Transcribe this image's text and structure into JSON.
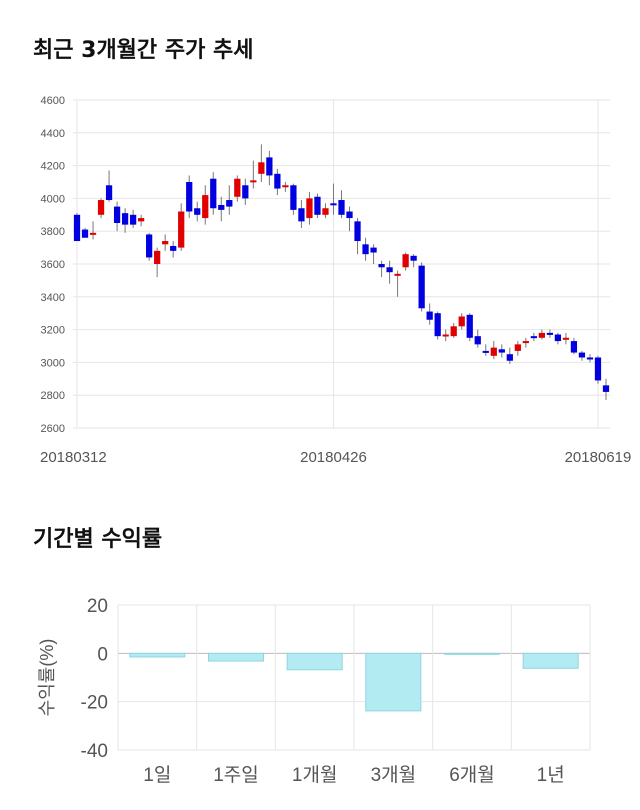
{
  "sections": {
    "price_title": "최근 3개월간 주가 추세",
    "returns_title": "기간별 수익률"
  },
  "colors": {
    "up": "#e00000",
    "down": "#0000e0",
    "bar_fill": "#b2ebf2",
    "bar_stroke": "#8fd6e0",
    "grid": "#e6e6e6"
  },
  "chart_data": [
    {
      "type": "candlestick",
      "title": "최근 3개월간 주가 추세",
      "ylim": [
        2600,
        4600
      ],
      "yticks": [
        2600,
        2800,
        3000,
        3200,
        3400,
        3600,
        3800,
        4000,
        4200,
        4400,
        4600
      ],
      "xtick_labels": [
        {
          "index": 0,
          "label": "20180312"
        },
        {
          "index": 32,
          "label": "20180426"
        },
        {
          "index": 65,
          "label": "20180619"
        }
      ],
      "candles": [
        [
          3900,
          3740,
          3910,
          3760
        ],
        [
          3810,
          3760,
          3820,
          3770
        ],
        [
          3790,
          3790,
          3860,
          3750
        ],
        [
          3900,
          3990,
          4000,
          3880
        ],
        [
          4080,
          3990,
          4170,
          3980
        ],
        [
          3950,
          3850,
          3980,
          3800
        ],
        [
          3910,
          3840,
          3940,
          3790
        ],
        [
          3900,
          3840,
          3930,
          3820
        ],
        [
          3860,
          3880,
          3900,
          3830
        ],
        [
          3780,
          3640,
          3790,
          3620
        ],
        [
          3600,
          3680,
          3700,
          3520
        ],
        [
          3720,
          3740,
          3780,
          3680
        ],
        [
          3710,
          3680,
          3740,
          3640
        ],
        [
          3700,
          3920,
          3970,
          3680
        ],
        [
          4100,
          3920,
          4140,
          3880
        ],
        [
          3940,
          3900,
          3980,
          3860
        ],
        [
          3880,
          4020,
          4080,
          3840
        ],
        [
          4120,
          3940,
          4160,
          3900
        ],
        [
          3960,
          3930,
          4010,
          3860
        ],
        [
          3990,
          3950,
          4080,
          3900
        ],
        [
          4010,
          4120,
          4140,
          3980
        ],
        [
          4080,
          4000,
          4120,
          3960
        ],
        [
          4110,
          4110,
          4230,
          4060
        ],
        [
          4150,
          4220,
          4330,
          4100
        ],
        [
          4250,
          4140,
          4290,
          4080
        ],
        [
          4150,
          4060,
          4180,
          4020
        ],
        [
          4080,
          4080,
          4100,
          4040
        ],
        [
          4080,
          3930,
          4090,
          3900
        ],
        [
          3940,
          3860,
          3990,
          3820
        ],
        [
          3880,
          4000,
          4040,
          3840
        ],
        [
          4010,
          3900,
          4030,
          3880
        ],
        [
          3900,
          3940,
          3970,
          3880
        ],
        [
          3970,
          3960,
          4090,
          3900
        ],
        [
          3990,
          3900,
          4050,
          3880
        ],
        [
          3920,
          3880,
          3950,
          3800
        ],
        [
          3860,
          3740,
          3880,
          3660
        ],
        [
          3720,
          3660,
          3760,
          3620
        ],
        [
          3700,
          3670,
          3720,
          3600
        ],
        [
          3600,
          3580,
          3620,
          3520
        ],
        [
          3580,
          3550,
          3620,
          3480
        ],
        [
          3540,
          3540,
          3560,
          3400
        ],
        [
          3580,
          3660,
          3670,
          3560
        ],
        [
          3650,
          3620,
          3660,
          3580
        ],
        [
          3590,
          3330,
          3610,
          3310
        ],
        [
          3310,
          3260,
          3360,
          3230
        ],
        [
          3300,
          3160,
          3310,
          3140
        ],
        [
          3170,
          3170,
          3200,
          3130
        ],
        [
          3160,
          3220,
          3240,
          3150
        ],
        [
          3220,
          3280,
          3300,
          3200
        ],
        [
          3290,
          3150,
          3300,
          3130
        ],
        [
          3160,
          3110,
          3200,
          3090
        ],
        [
          3070,
          3060,
          3110,
          3040
        ],
        [
          3040,
          3090,
          3130,
          3020
        ],
        [
          3080,
          3060,
          3110,
          3030
        ],
        [
          3050,
          3010,
          3090,
          2990
        ],
        [
          3070,
          3110,
          3130,
          3040
        ],
        [
          3120,
          3130,
          3150,
          3090
        ],
        [
          3160,
          3150,
          3180,
          3130
        ],
        [
          3150,
          3180,
          3200,
          3140
        ],
        [
          3180,
          3170,
          3200,
          3150
        ],
        [
          3170,
          3130,
          3180,
          3110
        ],
        [
          3140,
          3150,
          3180,
          3110
        ],
        [
          3130,
          3060,
          3150,
          3050
        ],
        [
          3060,
          3030,
          3070,
          3010
        ],
        [
          3030,
          3020,
          3050,
          3000
        ],
        [
          3030,
          2890,
          3040,
          2870
        ],
        [
          2860,
          2820,
          2900,
          2770
        ]
      ]
    },
    {
      "type": "bar",
      "title": "기간별 수익률",
      "categories": [
        "1일",
        "1주일",
        "1개월",
        "3개월",
        "6개월",
        "1년"
      ],
      "values": [
        -1.5,
        -3.2,
        -6.8,
        -23.8,
        -0.3,
        -6.2
      ],
      "ylabel": "수익률(%)",
      "ylim": [
        -40,
        20
      ],
      "yticks": [
        -40,
        -20,
        0,
        20
      ]
    }
  ]
}
